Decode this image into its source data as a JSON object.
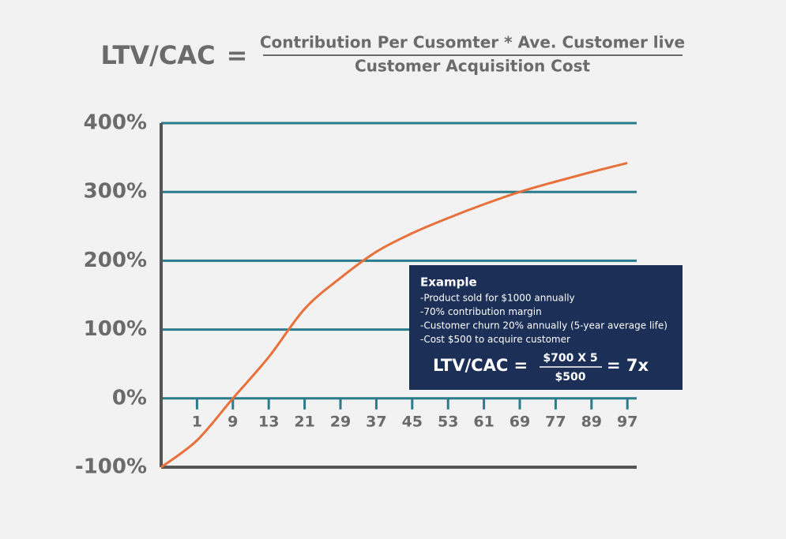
{
  "chart_data": {
    "type": "line",
    "title": {
      "left": "LTV/CAC",
      "equals": "=",
      "numerator": "Contribution Per Cusomter * Ave. Customer live",
      "denominator": "Customer Acquisition Cost"
    },
    "categories": [
      null,
      "1",
      "9",
      "13",
      "21",
      "29",
      "37",
      "45",
      "53",
      "61",
      "69",
      "77",
      "89",
      "97"
    ],
    "series": [
      {
        "name": null,
        "color": "#e8703a",
        "values": [
          -100,
          -61,
          0,
          60,
          130,
          175,
          213,
          240,
          262,
          282,
          300,
          315,
          329,
          342
        ]
      }
    ],
    "ylim": [
      -100,
      400
    ],
    "yticks": [
      {
        "value": -100,
        "label": "-100%"
      },
      {
        "value": 0,
        "label": "0%"
      },
      {
        "value": 100,
        "label": "100%"
      },
      {
        "value": 200,
        "label": "200%"
      },
      {
        "value": 300,
        "label": "300%"
      },
      {
        "value": 400,
        "label": "400%"
      }
    ],
    "grid": true,
    "grid_color": "#2a7b8c",
    "annotation": {
      "heading": "Example",
      "lines": [
        "-Product sold for $1000 annually",
        "-70% contribution margin",
        "-Customer churn 20% annually (5-year average life)",
        "-Cost $500 to acquire customer"
      ],
      "formula": {
        "left": "LTV/CAC =",
        "numerator": "$700 X 5",
        "denominator": "$500",
        "result": "= 7x"
      },
      "color": "#1b2f57"
    }
  }
}
